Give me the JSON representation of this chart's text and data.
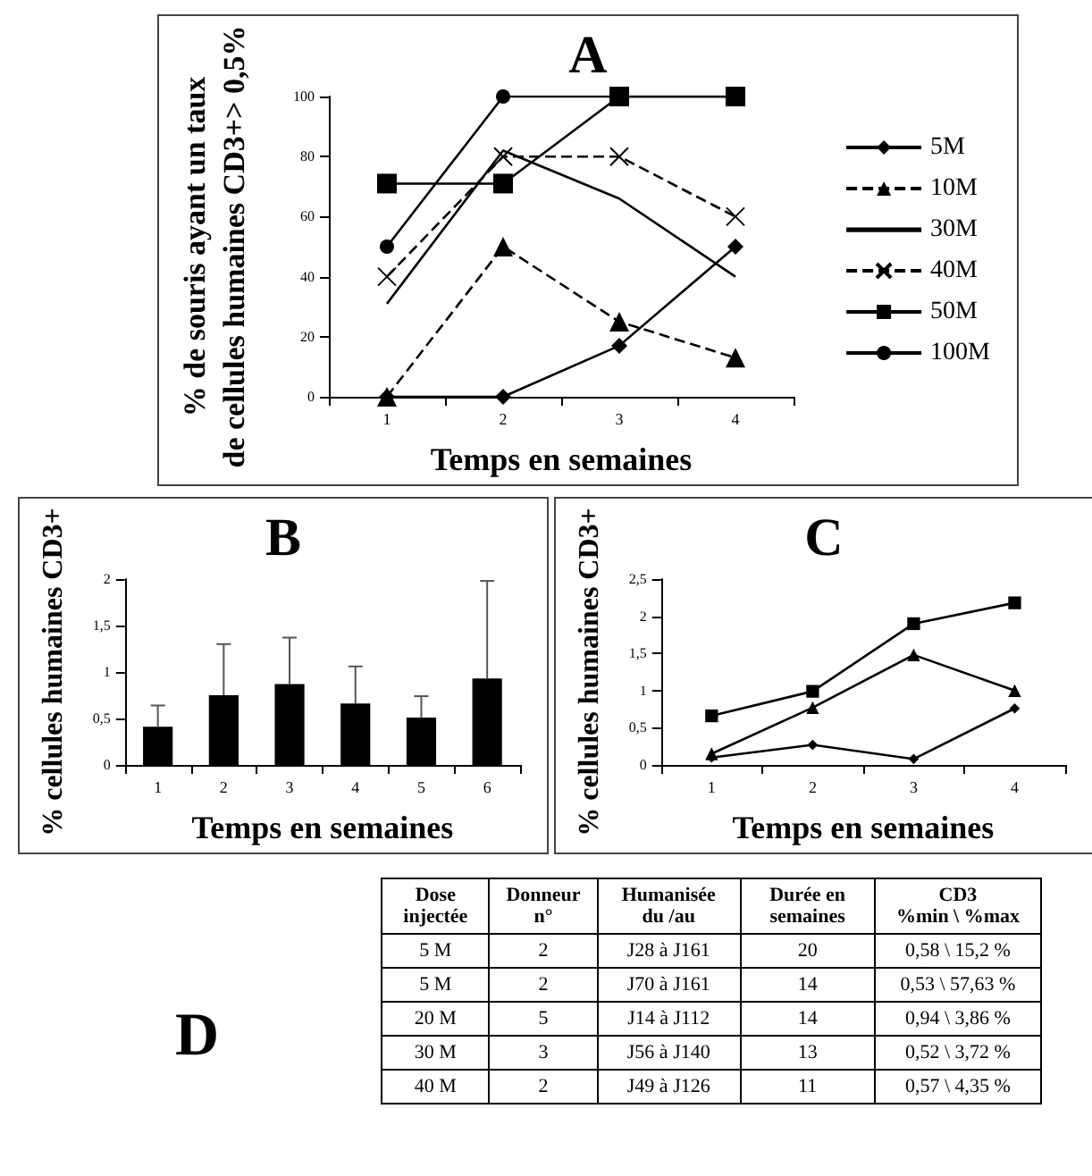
{
  "chart_data": [
    {
      "type": "line",
      "title": "A",
      "xlabel": "Temps en semaines",
      "ylabel": "% de souris ayant un taux\nde cellules humaines CD3+> 0,5%",
      "categories": [
        "1",
        "2",
        "3",
        "4"
      ],
      "ylim": [
        0,
        100
      ],
      "yticks": [
        0,
        20,
        40,
        60,
        80,
        100
      ],
      "grid": false,
      "legend": "right",
      "series": [
        {
          "name": "5M",
          "color": "#000000",
          "marker": "diamond",
          "line_style": "solid",
          "values": [
            0,
            0,
            17,
            50
          ]
        },
        {
          "name": "10M",
          "color": "#000000",
          "marker": "triangle",
          "line_style": "dashed",
          "values": [
            0,
            50,
            25,
            13
          ]
        },
        {
          "name": "30M",
          "color": "#000000",
          "marker": "none",
          "line_style": "solid",
          "values": [
            31,
            82,
            66,
            40
          ]
        },
        {
          "name": "40M",
          "color": "#000000",
          "marker": "cross",
          "line_style": "dashed",
          "values": [
            40,
            80,
            80,
            60
          ]
        },
        {
          "name": "50M",
          "color": "#000000",
          "marker": "square",
          "line_style": "solid",
          "values": [
            71,
            71,
            100,
            100
          ]
        },
        {
          "name": "100M",
          "color": "#000000",
          "marker": "circle",
          "line_style": "solid",
          "values": [
            50,
            100,
            100,
            100
          ]
        }
      ]
    },
    {
      "type": "bar",
      "title": "B",
      "xlabel": "Temps en semaines",
      "ylabel": "% cellules humaines CD3+",
      "categories": [
        "1",
        "2",
        "3",
        "4",
        "5",
        "6"
      ],
      "ylim": [
        0,
        2
      ],
      "yticks": [
        0,
        {
          "value": 0.5,
          "label": "0,5"
        },
        1,
        {
          "value": 1.5,
          "label": "1,5"
        },
        2
      ],
      "grid": false,
      "legend": false,
      "series": [
        {
          "color": "#000000",
          "values": [
            0.41,
            0.75,
            0.87,
            0.66,
            0.51,
            0.93
          ],
          "errors": [
            [
              0.41,
              0.64
            ],
            [
              0.75,
              1.3
            ],
            [
              0.87,
              1.37
            ],
            [
              0.66,
              1.06
            ],
            [
              0.51,
              0.74
            ],
            [
              0.93,
              1.98
            ]
          ]
        }
      ]
    },
    {
      "type": "line",
      "title": "C",
      "xlabel": "Temps en semaines",
      "ylabel": "% cellules humaines CD3+",
      "categories": [
        "1",
        "2",
        "3",
        "4"
      ],
      "ylim": [
        0,
        2.5
      ],
      "yticks": [
        0,
        {
          "value": 0.5,
          "label": "0,5"
        },
        1,
        {
          "value": 1.5,
          "label": "1,5"
        },
        2,
        {
          "value": 2.5,
          "label": "2,5"
        }
      ],
      "grid": false,
      "legend": false,
      "series": [
        {
          "color": "#000000",
          "marker": "square",
          "line_style": "solid",
          "values": [
            0.66,
            0.99,
            1.9,
            2.18
          ]
        },
        {
          "color": "#000000",
          "marker": "triangle",
          "line_style": "solid",
          "values": [
            0.15,
            0.77,
            1.48,
            1.0
          ]
        },
        {
          "color": "#000000",
          "marker": "diamond",
          "line_style": "solid",
          "values": [
            0.1,
            0.27,
            0.08,
            0.76
          ]
        }
      ]
    },
    {
      "type": "other",
      "title": "D",
      "categories": [
        "Dose injectée",
        "Donneur n°",
        "Humanisée du /au",
        "Durée en semaines",
        "CD3\n%min \\ %max"
      ],
      "annotations": [
        "5 M",
        "2",
        "J28 à J161",
        "20",
        "0,58 \\ 15,2 %",
        "5 M",
        "2",
        "J70 à J161",
        "14",
        "0,53 \\ 57,63 %",
        "20 M",
        "5",
        "J14 à J112",
        "14",
        "0,94 \\ 3,86 %",
        "30 M",
        "3",
        "J56 à J140",
        "13",
        "0,52 \\ 3,72 %",
        "40 M",
        "2",
        "J49 à J126",
        "11",
        "0,57 \\ 4,35 %"
      ]
    }
  ]
}
